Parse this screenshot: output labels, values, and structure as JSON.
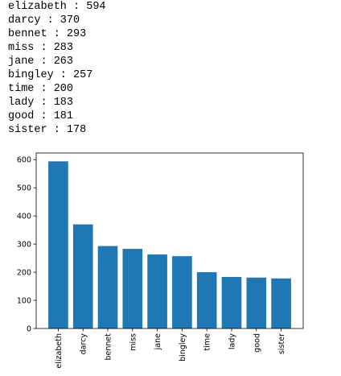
{
  "output_lines": [
    "elizabeth : 594",
    "darcy : 370",
    "bennet : 293",
    "miss : 283",
    "jane : 263",
    "bingley : 257",
    "time : 200",
    "lady : 183",
    "good : 181",
    "sister : 178"
  ],
  "chart_data": {
    "type": "bar",
    "categories": [
      "elizabeth",
      "darcy",
      "bennet",
      "miss",
      "jane",
      "bingley",
      "time",
      "lady",
      "good",
      "sister"
    ],
    "values": [
      594,
      370,
      293,
      283,
      263,
      257,
      200,
      183,
      181,
      178
    ],
    "color": "#1f77b4",
    "ylim": [
      0,
      623.7
    ],
    "yticks": [
      0,
      100,
      200,
      300,
      400,
      500,
      600
    ],
    "grid": false
  }
}
